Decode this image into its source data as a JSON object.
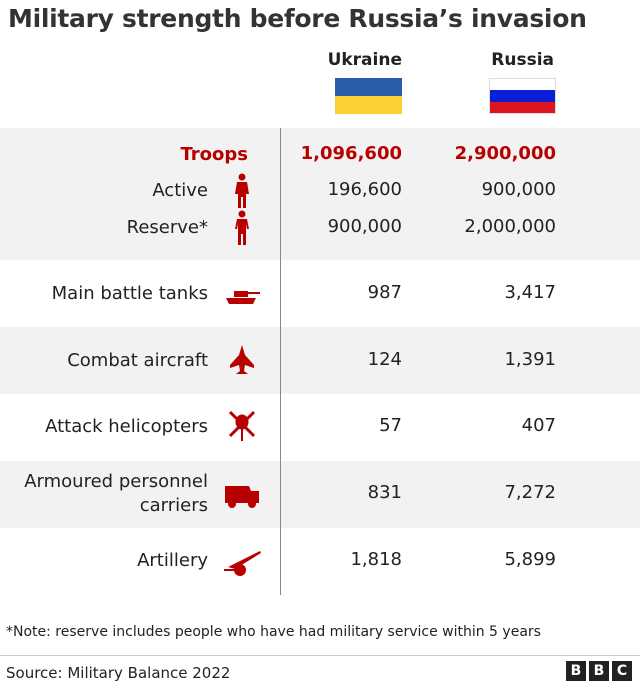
{
  "title": "Military strength before Russia’s invasion",
  "columns": {
    "ukraine": "Ukraine",
    "russia": "Russia"
  },
  "flag_colors": {
    "ukraine": [
      "#2a5caa",
      "#fcd034"
    ],
    "russia": [
      "#ffffff",
      "#0a1fd6",
      "#e0141e"
    ]
  },
  "accent_color": "#b80000",
  "chart_data": {
    "type": "table",
    "title": "Military strength before Russia’s invasion",
    "columns": [
      "Ukraine",
      "Russia"
    ],
    "rows": [
      {
        "label": "Troops",
        "ukraine": "1,096,600",
        "russia": "2,900,000",
        "icon": ""
      },
      {
        "label": "Active",
        "ukraine": "196,600",
        "russia": "900,000",
        "icon": "soldier-icon"
      },
      {
        "label": "Reserve*",
        "ukraine": "900,000",
        "russia": "2,000,000",
        "icon": "person-icon"
      },
      {
        "label": "Main battle tanks",
        "ukraine": "987",
        "russia": "3,417",
        "icon": "tank-icon"
      },
      {
        "label": "Combat aircraft",
        "ukraine": "124",
        "russia": "1,391",
        "icon": "jet-icon"
      },
      {
        "label": "Attack helicopters",
        "ukraine": "57",
        "russia": "407",
        "icon": "helicopter-icon"
      },
      {
        "label": "Armoured personnel carriers",
        "ukraine": "831",
        "russia": "7,272",
        "icon": "apc-icon"
      },
      {
        "label": "Artillery",
        "ukraine": "1,818",
        "russia": "5,899",
        "icon": "artillery-icon"
      }
    ]
  },
  "note": "*Note: reserve includes people who have had military service within 5 years",
  "source": "Source: Military Balance 2022",
  "logo": "BBC"
}
